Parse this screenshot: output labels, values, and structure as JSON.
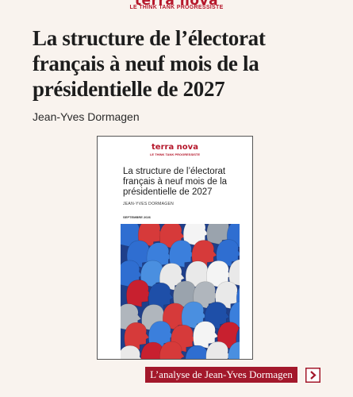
{
  "header": {
    "logo": "terra nova",
    "tagline": "LE THINK TANK PROGRESSISTE"
  },
  "article": {
    "title": "La structure de l’électorat français à neuf mois de la présidentielle de 2027",
    "author": "Jean-Yves Dormagen"
  },
  "cover": {
    "logo": "terra nova",
    "tagline": "LE THINK TANK PROGRESSISTE",
    "title": "La structure de l’électorat français à neuf mois de la présidentielle de 2027",
    "author": "JEAN-YVES DORMAGEN",
    "date": "SEPTEMBRE 2026"
  },
  "button": {
    "label": "L’analyse de Jean-Yves Dormagen"
  }
}
